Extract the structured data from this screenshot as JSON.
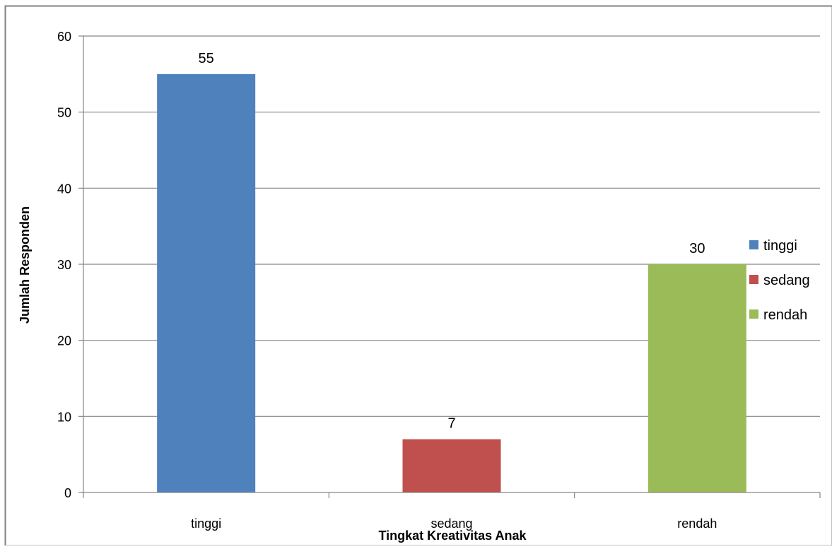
{
  "chart_data": {
    "type": "bar",
    "title": "",
    "xlabel": "Tingkat Kreativitas Anak",
    "ylabel": "Jumlah Responden",
    "categories": [
      "tinggi",
      "sedang",
      "rendah"
    ],
    "series": [
      {
        "name": "tinggi",
        "values": [
          55,
          null,
          null
        ],
        "color": "#4F81BD"
      },
      {
        "name": "sedang",
        "values": [
          null,
          7,
          null
        ],
        "color": "#C0504D"
      },
      {
        "name": "rendah",
        "values": [
          null,
          null,
          30
        ],
        "color": "#9BBB59"
      }
    ],
    "values": [
      55,
      7,
      30
    ],
    "colors": [
      "#4F81BD",
      "#C0504D",
      "#9BBB59"
    ],
    "ylim": [
      0,
      60
    ],
    "yticks": [
      0,
      10,
      20,
      30,
      40,
      50,
      60
    ],
    "grid": true,
    "legend": {
      "placement": "right",
      "entries": [
        "tinggi",
        "sedang",
        "rendah"
      ]
    }
  }
}
